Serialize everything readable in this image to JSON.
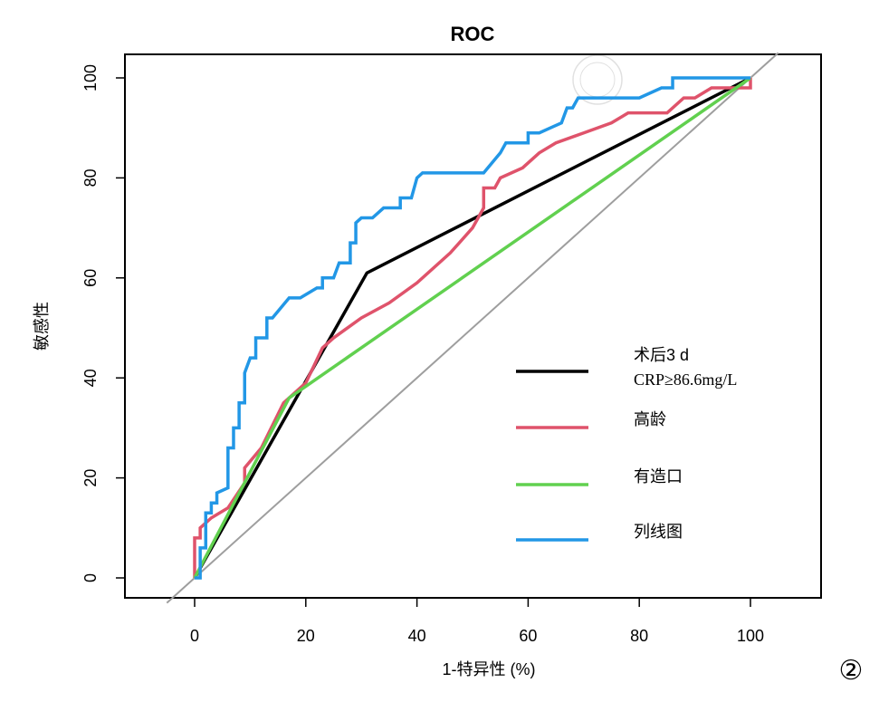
{
  "chart_data": {
    "type": "line",
    "title": "ROC",
    "xlabel": "1-特异性 (%)",
    "ylabel": "敏感性",
    "xlim": [
      -12,
      112
    ],
    "ylim": [
      -4,
      104
    ],
    "xticks": [
      0,
      20,
      40,
      60,
      80,
      100
    ],
    "yticks": [
      0,
      20,
      40,
      60,
      80,
      100
    ],
    "legend_position": "center-right",
    "reference_line": {
      "color": "#9E9E9E",
      "points": [
        [
          -5,
          -5
        ],
        [
          105,
          105
        ]
      ]
    },
    "series": [
      {
        "name": "术后3 d",
        "name2": "CRP≥86.6mg/L",
        "color": "#000000",
        "points": [
          [
            0,
            0
          ],
          [
            31,
            61
          ],
          [
            100,
            100
          ]
        ]
      },
      {
        "name": "高龄",
        "color": "#DF536B",
        "points": [
          [
            0,
            0
          ],
          [
            0,
            8
          ],
          [
            1,
            8
          ],
          [
            1,
            10
          ],
          [
            3,
            12
          ],
          [
            6,
            14
          ],
          [
            9,
            19
          ],
          [
            9,
            22
          ],
          [
            12,
            26
          ],
          [
            16,
            35
          ],
          [
            20,
            39
          ],
          [
            23,
            46
          ],
          [
            25,
            48
          ],
          [
            30,
            52
          ],
          [
            35,
            55
          ],
          [
            40,
            59
          ],
          [
            46,
            65
          ],
          [
            50,
            70
          ],
          [
            52,
            74
          ],
          [
            52,
            78
          ],
          [
            54,
            78
          ],
          [
            55,
            80
          ],
          [
            59,
            82
          ],
          [
            62,
            85
          ],
          [
            65,
            87
          ],
          [
            70,
            89
          ],
          [
            75,
            91
          ],
          [
            78,
            93
          ],
          [
            85,
            93
          ],
          [
            88,
            96
          ],
          [
            90,
            96
          ],
          [
            93,
            98
          ],
          [
            100,
            98
          ],
          [
            100,
            100
          ]
        ]
      },
      {
        "name": "有造口",
        "color": "#61D04F",
        "points": [
          [
            0,
            0
          ],
          [
            17,
            36
          ],
          [
            100,
            100
          ]
        ]
      },
      {
        "name": "列线图",
        "color": "#2297E6",
        "points": [
          [
            0,
            0
          ],
          [
            1,
            0
          ],
          [
            1,
            6
          ],
          [
            2,
            6
          ],
          [
            2,
            13
          ],
          [
            3,
            13
          ],
          [
            3,
            15
          ],
          [
            4,
            15
          ],
          [
            4,
            17
          ],
          [
            6,
            18
          ],
          [
            6,
            26
          ],
          [
            7,
            26
          ],
          [
            7,
            30
          ],
          [
            8,
            30
          ],
          [
            8,
            35
          ],
          [
            9,
            35
          ],
          [
            9,
            41
          ],
          [
            10,
            44
          ],
          [
            11,
            44
          ],
          [
            11,
            48
          ],
          [
            13,
            48
          ],
          [
            13,
            52
          ],
          [
            14,
            52
          ],
          [
            17,
            56
          ],
          [
            19,
            56
          ],
          [
            22,
            58
          ],
          [
            23,
            58
          ],
          [
            23,
            60
          ],
          [
            25,
            60
          ],
          [
            26,
            63
          ],
          [
            28,
            63
          ],
          [
            28,
            67
          ],
          [
            29,
            67
          ],
          [
            29,
            71
          ],
          [
            30,
            72
          ],
          [
            32,
            72
          ],
          [
            34,
            74
          ],
          [
            37,
            74
          ],
          [
            37,
            76
          ],
          [
            39,
            76
          ],
          [
            40,
            80
          ],
          [
            41,
            81
          ],
          [
            52,
            81
          ],
          [
            55,
            85
          ],
          [
            56,
            87
          ],
          [
            60,
            87
          ],
          [
            60,
            89
          ],
          [
            62,
            89
          ],
          [
            64,
            90
          ],
          [
            66,
            91
          ],
          [
            67,
            94
          ],
          [
            68,
            94
          ],
          [
            69,
            96
          ],
          [
            70,
            96
          ],
          [
            80,
            96
          ],
          [
            84,
            98
          ],
          [
            86,
            98
          ],
          [
            86,
            100
          ],
          [
            100,
            100
          ]
        ]
      }
    ]
  },
  "figure_label": "②",
  "watermark": "中华医学会"
}
